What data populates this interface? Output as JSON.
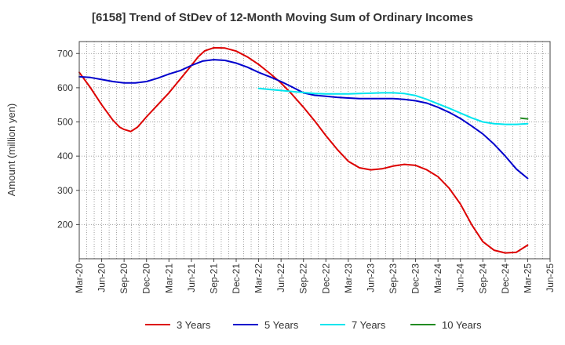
{
  "chart_data": {
    "type": "line",
    "title": "[6158]  Trend of StDev of 12-Month Moving Sum of Ordinary Incomes",
    "xlabel": "",
    "ylabel": "Amount (million yen)",
    "ylim": [
      100,
      735
    ],
    "yticks": [
      200,
      300,
      400,
      500,
      600,
      700
    ],
    "x_range": [
      0,
      21
    ],
    "x_tick_labels": [
      "Mar-20",
      "Jun-20",
      "Sep-20",
      "Dec-20",
      "Mar-21",
      "Jun-21",
      "Sep-21",
      "Dec-21",
      "Mar-22",
      "Jun-22",
      "Sep-22",
      "Dec-22",
      "Mar-23",
      "Jun-23",
      "Sep-23",
      "Dec-23",
      "Mar-24",
      "Jun-24",
      "Sep-24",
      "Dec-24",
      "Mar-25",
      "Jun-25"
    ],
    "grid": true,
    "legend_position": "bottom",
    "series": [
      {
        "name": "3 Years",
        "color": "#dd0000",
        "x": [
          0,
          0.5,
          1,
          1.5,
          1.8,
          2,
          2.3,
          2.6,
          3,
          3.5,
          4,
          4.5,
          5,
          5.3,
          5.6,
          6,
          6.5,
          7,
          7.5,
          8,
          8.5,
          9,
          9.5,
          10,
          10.5,
          11,
          11.5,
          12,
          12.5,
          13,
          13.5,
          14,
          14.5,
          15,
          15.5,
          16,
          16.5,
          17,
          17.5,
          18,
          18.5,
          19,
          19.5,
          20
        ],
        "values": [
          645,
          600,
          550,
          505,
          485,
          478,
          472,
          485,
          515,
          550,
          585,
          625,
          665,
          690,
          708,
          717,
          716,
          707,
          690,
          668,
          642,
          614,
          580,
          543,
          503,
          460,
          420,
          385,
          366,
          360,
          363,
          371,
          376,
          373,
          360,
          340,
          306,
          260,
          200,
          150,
          125,
          117,
          119,
          140
        ]
      },
      {
        "name": "5 Years",
        "color": "#0000cc",
        "x": [
          0,
          0.5,
          1,
          1.5,
          2,
          2.5,
          3,
          3.5,
          4,
          4.5,
          5,
          5.5,
          6,
          6.5,
          7,
          7.5,
          8,
          8.5,
          9,
          9.5,
          10,
          10.5,
          11,
          11.5,
          12,
          12.5,
          13,
          13.5,
          14,
          14.5,
          15,
          15.5,
          16,
          16.5,
          17,
          17.5,
          18,
          18.5,
          19,
          19.5,
          20
        ],
        "values": [
          632,
          630,
          624,
          618,
          614,
          614,
          618,
          628,
          640,
          650,
          665,
          678,
          682,
          680,
          672,
          660,
          645,
          632,
          618,
          602,
          585,
          578,
          575,
          572,
          570,
          568,
          568,
          568,
          568,
          566,
          562,
          555,
          543,
          528,
          510,
          488,
          465,
          435,
          400,
          362,
          335
        ]
      },
      {
        "name": "7 Years",
        "color": "#00e5ee",
        "x": [
          8,
          8.5,
          9,
          9.5,
          10,
          10.5,
          11,
          11.5,
          12,
          12.5,
          13,
          13.5,
          14,
          14.5,
          15,
          15.5,
          16,
          16.5,
          17,
          17.5,
          18,
          18.5,
          19,
          19.5,
          20
        ],
        "values": [
          598,
          595,
          592,
          589,
          586,
          583,
          582,
          582,
          582,
          583,
          584,
          585,
          585,
          583,
          577,
          566,
          553,
          540,
          526,
          512,
          500,
          495,
          493,
          493,
          495
        ]
      },
      {
        "name": "10 Years",
        "color": "#228b22",
        "x": [
          19.7,
          20
        ],
        "values": [
          511,
          509
        ]
      }
    ]
  }
}
